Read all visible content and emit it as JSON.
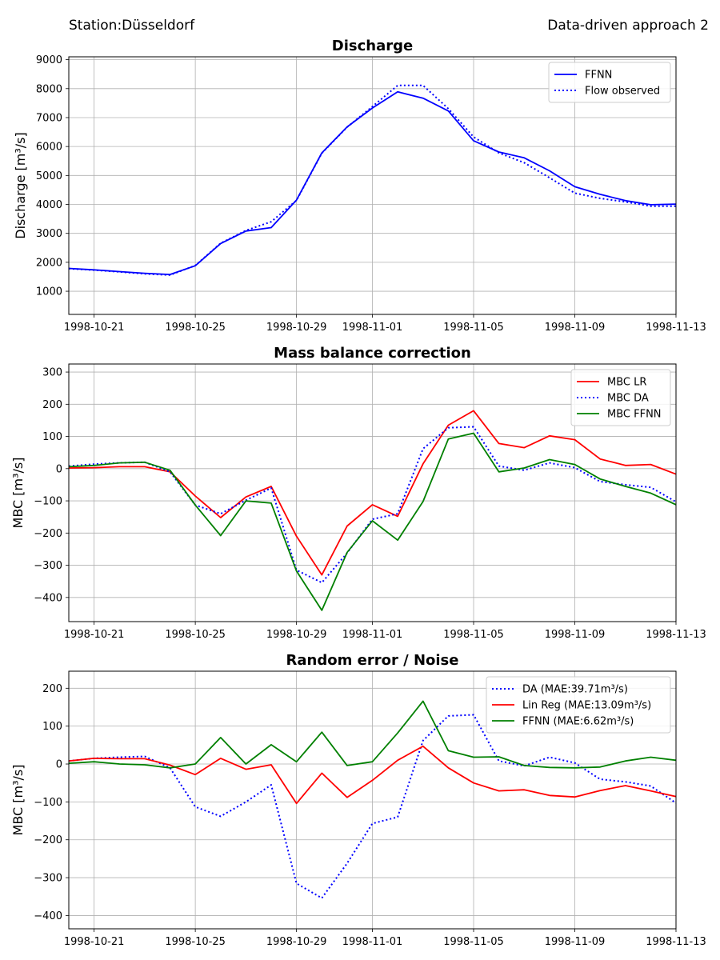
{
  "header": {
    "station": "Station:Düsseldorf",
    "approach": "Data-driven approach 2"
  },
  "chart_data": [
    {
      "type": "line",
      "title": "Discharge",
      "xlabel": "",
      "ylabel": "Discharge [m³/s]",
      "x": [
        "1998-10-20",
        "1998-10-21",
        "1998-10-22",
        "1998-10-23",
        "1998-10-24",
        "1998-10-25",
        "1998-10-26",
        "1998-10-27",
        "1998-10-28",
        "1998-10-29",
        "1998-10-30",
        "1998-10-31",
        "1998-11-01",
        "1998-11-02",
        "1998-11-03",
        "1998-11-04",
        "1998-11-05",
        "1998-11-06",
        "1998-11-07",
        "1998-11-08",
        "1998-11-09",
        "1998-11-10",
        "1998-11-11",
        "1998-11-12",
        "1998-11-13"
      ],
      "xticks": [
        "1998-10-21",
        "1998-10-25",
        "1998-10-29",
        "1998-11-01",
        "1998-11-05",
        "1998-11-09",
        "1998-11-13"
      ],
      "ylim": [
        200,
        9100
      ],
      "yticks": [
        1000,
        2000,
        3000,
        4000,
        5000,
        6000,
        7000,
        8000,
        9000
      ],
      "grid": true,
      "legend_position": "top-right",
      "series": [
        {
          "name": "FFNN",
          "color": "#0000ff",
          "style": "solid",
          "values": [
            1790,
            1740,
            1680,
            1620,
            1580,
            1880,
            2650,
            3080,
            3200,
            4150,
            5780,
            6680,
            7330,
            7890,
            7670,
            7230,
            6200,
            5810,
            5610,
            5160,
            4610,
            4350,
            4130,
            3990,
            4010
          ]
        },
        {
          "name": "Flow observed",
          "color": "#0000ff",
          "style": "dotted",
          "values": [
            1780,
            1730,
            1670,
            1600,
            1560,
            1890,
            2660,
            3100,
            3400,
            4140,
            5770,
            6670,
            7380,
            8110,
            8110,
            7310,
            6330,
            5780,
            5440,
            4920,
            4390,
            4210,
            4090,
            3940,
            3940
          ]
        }
      ]
    },
    {
      "type": "line",
      "title": "Mass balance correction",
      "xlabel": "",
      "ylabel": "MBC [m³/s]",
      "x": [
        "1998-10-20",
        "1998-10-21",
        "1998-10-22",
        "1998-10-23",
        "1998-10-24",
        "1998-10-25",
        "1998-10-26",
        "1998-10-27",
        "1998-10-28",
        "1998-10-29",
        "1998-10-30",
        "1998-10-31",
        "1998-11-01",
        "1998-11-02",
        "1998-11-03",
        "1998-11-04",
        "1998-11-05",
        "1998-11-06",
        "1998-11-07",
        "1998-11-08",
        "1998-11-09",
        "1998-11-10",
        "1998-11-11",
        "1998-11-12",
        "1998-11-13"
      ],
      "xticks": [
        "1998-10-21",
        "1998-10-25",
        "1998-10-29",
        "1998-11-01",
        "1998-11-05",
        "1998-11-09",
        "1998-11-13"
      ],
      "ylim": [
        -475,
        325
      ],
      "yticks": [
        -400,
        -300,
        -200,
        -100,
        0,
        100,
        200,
        300
      ],
      "grid": true,
      "legend_position": "top-right",
      "series": [
        {
          "name": "MBC LR",
          "color": "#ff0000",
          "style": "solid",
          "values": [
            2,
            3,
            6,
            6,
            -10,
            -85,
            -152,
            -88,
            -55,
            -210,
            -330,
            -178,
            -112,
            -148,
            15,
            135,
            180,
            78,
            65,
            102,
            90,
            30,
            10,
            13,
            -17
          ]
        },
        {
          "name": "MBC DA",
          "color": "#0000ff",
          "style": "dotted",
          "values": [
            8,
            14,
            18,
            20,
            -10,
            -113,
            -140,
            -98,
            -60,
            -315,
            -354,
            -262,
            -157,
            -140,
            62,
            127,
            130,
            8,
            -5,
            18,
            3,
            -40,
            -50,
            -58,
            -103
          ]
        },
        {
          "name": "MBC FFNN",
          "color": "#008000",
          "style": "solid",
          "values": [
            6,
            10,
            18,
            20,
            -5,
            -113,
            -208,
            -100,
            -107,
            -318,
            -440,
            -260,
            -162,
            -222,
            -102,
            92,
            110,
            -10,
            2,
            28,
            13,
            -32,
            -55,
            -76,
            -112
          ]
        }
      ]
    },
    {
      "type": "line",
      "title": "Random error / Noise",
      "xlabel": "",
      "ylabel": "MBC [m³/s]",
      "x": [
        "1998-10-20",
        "1998-10-21",
        "1998-10-22",
        "1998-10-23",
        "1998-10-24",
        "1998-10-25",
        "1998-10-26",
        "1998-10-27",
        "1998-10-28",
        "1998-10-29",
        "1998-10-30",
        "1998-10-31",
        "1998-11-01",
        "1998-11-02",
        "1998-11-03",
        "1998-11-04",
        "1998-11-05",
        "1998-11-06",
        "1998-11-07",
        "1998-11-08",
        "1998-11-09",
        "1998-11-10",
        "1998-11-11",
        "1998-11-12",
        "1998-11-13"
      ],
      "xticks": [
        "1998-10-21",
        "1998-10-25",
        "1998-10-29",
        "1998-11-01",
        "1998-11-05",
        "1998-11-09",
        "1998-11-13"
      ],
      "ylim": [
        -435,
        245
      ],
      "yticks": [
        -400,
        -300,
        -200,
        -100,
        0,
        100,
        200
      ],
      "grid": true,
      "legend_position": "top-right",
      "series": [
        {
          "name": "DA (MAE:39.71m³/s)",
          "color": "#0000ff",
          "style": "dotted",
          "values": [
            8,
            15,
            18,
            20,
            -10,
            -113,
            -138,
            -100,
            -55,
            -315,
            -354,
            -262,
            -157,
            -140,
            62,
            127,
            130,
            8,
            -5,
            18,
            3,
            -40,
            -47,
            -58,
            -103
          ]
        },
        {
          "name": "Lin Reg (MAE:13.09m³/s)",
          "color": "#ff0000",
          "style": "solid",
          "values": [
            8,
            15,
            14,
            14,
            -3,
            -28,
            15,
            -14,
            -2,
            -104,
            -24,
            -88,
            -43,
            10,
            47,
            -10,
            -50,
            -71,
            -68,
            -83,
            -87,
            -70,
            -57,
            -71,
            -86
          ]
        },
        {
          "name": "FFNN (MAE:6.62m³/s)",
          "color": "#008000",
          "style": "solid",
          "values": [
            2,
            6,
            0,
            -2,
            -10,
            0,
            70,
            0,
            51,
            6,
            84,
            -4,
            6,
            82,
            166,
            35,
            18,
            19,
            -4,
            -9,
            -10,
            -8,
            8,
            18,
            10
          ]
        }
      ]
    }
  ]
}
